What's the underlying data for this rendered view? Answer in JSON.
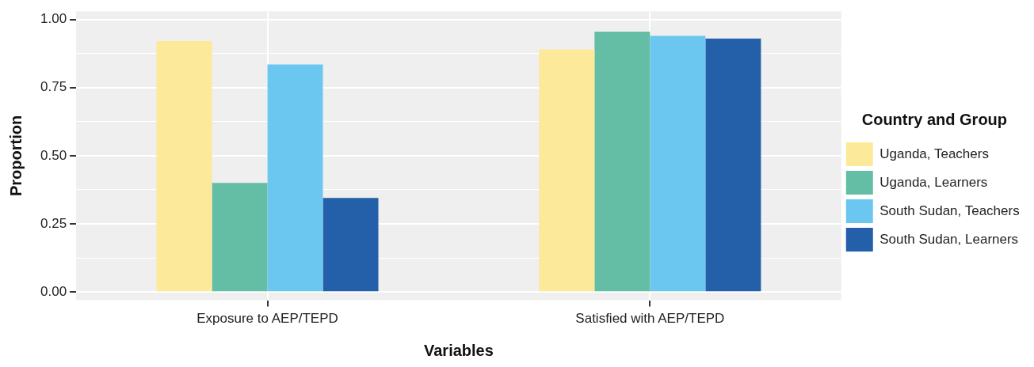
{
  "chart_data": {
    "type": "bar",
    "xlabel": "Variables",
    "ylabel": "Proportion",
    "legend_title": "Country and Group",
    "legend": "right",
    "categories": [
      "Exposure to AEP/TEPD",
      "Satisfied with AEP/TEPD"
    ],
    "series": [
      {
        "name": "Uganda, Teachers",
        "color": "#fce999",
        "values": [
          0.92,
          0.89
        ]
      },
      {
        "name": "Uganda, Learners",
        "color": "#64bea5",
        "values": [
          0.4,
          0.955
        ]
      },
      {
        "name": "South Sudan, Teachers",
        "color": "#6cc7f0",
        "values": [
          0.835,
          0.94
        ]
      },
      {
        "name": "South Sudan, Learners",
        "color": "#2360a9",
        "values": [
          0.345,
          0.93
        ]
      }
    ],
    "ylim": [
      -0.03,
      1.03
    ],
    "yticks": [
      {
        "value": 0,
        "label": "0.00"
      },
      {
        "value": 0.125,
        "label": null
      },
      {
        "value": 0.25,
        "label": "0.25"
      },
      {
        "value": 0.375,
        "label": null
      },
      {
        "value": 0.5,
        "label": "0.50"
      },
      {
        "value": 0.625,
        "label": null
      },
      {
        "value": 0.75,
        "label": "0.75"
      },
      {
        "value": 0.875,
        "label": null
      },
      {
        "value": 1,
        "label": "1.00"
      }
    ],
    "grid": true
  }
}
